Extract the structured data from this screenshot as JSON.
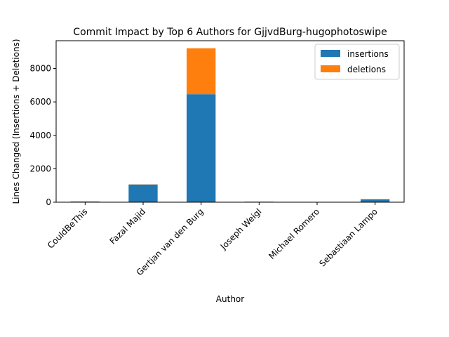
{
  "chart_data": {
    "type": "bar",
    "stacked": true,
    "title": "Commit Impact by Top 6 Authors for GjjvdBurg-hugophotoswipe",
    "xlabel": "Author",
    "ylabel": "Lines Changed (Insertions + Deletions)",
    "categories": [
      "CouldBeThis",
      "Fazal Majid",
      "Gertjan van den Burg",
      "Joseph Weigl",
      "Michael Romero",
      "Sebastiaan Lampo"
    ],
    "series": [
      {
        "name": "insertions",
        "color": "#1f77b4",
        "values": [
          40,
          1060,
          6460,
          30,
          5,
          170
        ]
      },
      {
        "name": "deletions",
        "color": "#ff7f0e",
        "values": [
          5,
          10,
          2750,
          5,
          2,
          10
        ]
      }
    ],
    "ylim": [
      0,
      9660
    ],
    "yticks": [
      0,
      2000,
      4000,
      6000,
      8000
    ],
    "grid": false,
    "legend_position": "top-right"
  }
}
